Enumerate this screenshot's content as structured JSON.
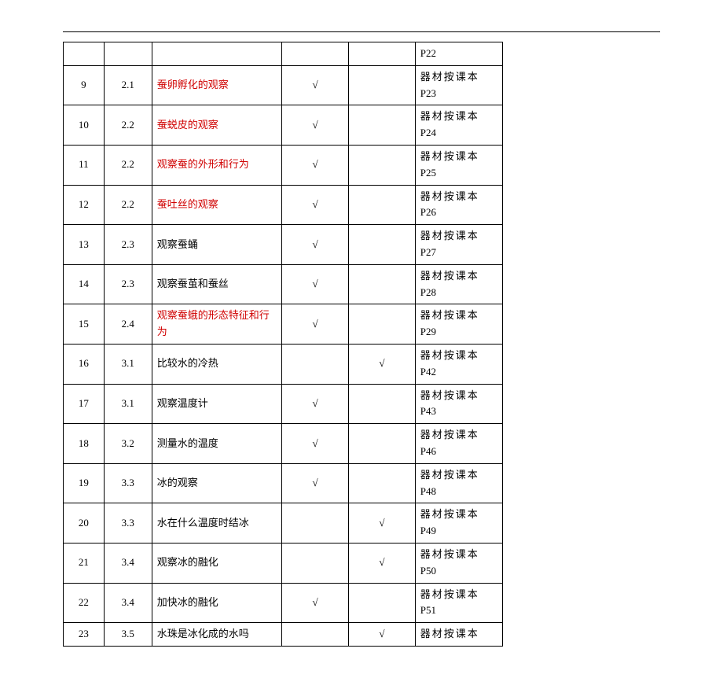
{
  "table": {
    "ref_prefix": "器材按课本",
    "rows": [
      {
        "idx": "",
        "ch": "",
        "title": "",
        "title_red": false,
        "m1": "",
        "m2": "",
        "ref_page": "P22"
      },
      {
        "idx": "9",
        "ch": "2.1",
        "title": "蚕卵孵化的观察",
        "title_red": true,
        "m1": "√",
        "m2": "",
        "ref_page": "P23"
      },
      {
        "idx": "10",
        "ch": "2.2",
        "title": "蚕蜕皮的观察",
        "title_red": true,
        "m1": "√",
        "m2": "",
        "ref_page": "P24"
      },
      {
        "idx": "11",
        "ch": "2.2",
        "title": "观察蚕的外形和行为",
        "title_red": true,
        "m1": "√",
        "m2": "",
        "ref_page": "P25"
      },
      {
        "idx": "12",
        "ch": "2.2",
        "title": "蚕吐丝的观察",
        "title_red": true,
        "m1": "√",
        "m2": "",
        "ref_page": "P26"
      },
      {
        "idx": "13",
        "ch": "2.3",
        "title": "观察蚕蛹",
        "title_red": false,
        "m1": "√",
        "m2": "",
        "ref_page": "P27"
      },
      {
        "idx": "14",
        "ch": "2.3",
        "title": "观察蚕茧和蚕丝",
        "title_red": false,
        "m1": "√",
        "m2": "",
        "ref_page": "P28"
      },
      {
        "idx": "15",
        "ch": "2.4",
        "title": "观察蚕蛾的形态特征和行为",
        "title_red": true,
        "m1": "√",
        "m2": "",
        "ref_page": "P29"
      },
      {
        "idx": "16",
        "ch": "3.1",
        "title": "比较水的冷热",
        "title_red": false,
        "m1": "",
        "m2": "√",
        "ref_page": "P42"
      },
      {
        "idx": "17",
        "ch": "3.1",
        "title": "观察温度计",
        "title_red": false,
        "m1": "√",
        "m2": "",
        "ref_page": "P43"
      },
      {
        "idx": "18",
        "ch": "3.2",
        "title": "测量水的温度",
        "title_red": false,
        "m1": "√",
        "m2": "",
        "ref_page": "P46"
      },
      {
        "idx": "19",
        "ch": "3.3",
        "title": "冰的观察",
        "title_red": false,
        "m1": "√",
        "m2": "",
        "ref_page": "P48"
      },
      {
        "idx": "20",
        "ch": "3.3",
        "title": "水在什么温度时结冰",
        "title_red": false,
        "m1": "",
        "m2": "√",
        "ref_page": "P49"
      },
      {
        "idx": "21",
        "ch": "3.4",
        "title": "观察冰的融化",
        "title_red": false,
        "m1": "",
        "m2": "√",
        "ref_page": "P50"
      },
      {
        "idx": "22",
        "ch": "3.4",
        "title": "加快冰的融化",
        "title_red": false,
        "m1": "√",
        "m2": "",
        "ref_page": "P51"
      },
      {
        "idx": "23",
        "ch": "3.5",
        "title": "水珠是冰化成的水吗",
        "title_red": false,
        "m1": "",
        "m2": "√",
        "ref_page": ""
      }
    ]
  }
}
